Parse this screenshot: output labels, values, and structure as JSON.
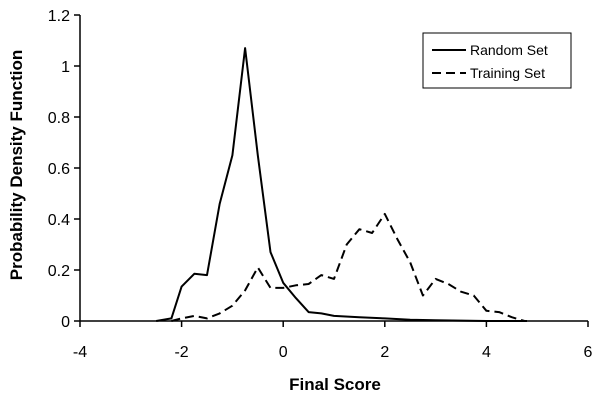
{
  "chart_data": {
    "type": "line",
    "title": "",
    "xlabel": "Final Score",
    "ylabel": "Probability Density Function",
    "xlim": [
      -4,
      6
    ],
    "ylim": [
      0,
      1.2
    ],
    "xticks": [
      "-4",
      "-2",
      "0",
      "2",
      "4",
      "6"
    ],
    "yticks": [
      "0",
      "0.2",
      "0.4",
      "0.6",
      "0.8",
      "1",
      "1.2"
    ],
    "grid": false,
    "legend_position": "top-right",
    "series": [
      {
        "name": "Random Set",
        "style": "solid",
        "color": "#000000",
        "points": [
          [
            -2.5,
            0.0
          ],
          [
            -2.2,
            0.01
          ],
          [
            -2.0,
            0.135
          ],
          [
            -1.75,
            0.185
          ],
          [
            -1.5,
            0.18
          ],
          [
            -1.25,
            0.46
          ],
          [
            -1.0,
            0.65
          ],
          [
            -0.75,
            1.07
          ],
          [
            -0.5,
            0.65
          ],
          [
            -0.25,
            0.27
          ],
          [
            0.0,
            0.15
          ],
          [
            0.25,
            0.09
          ],
          [
            0.5,
            0.035
          ],
          [
            0.75,
            0.03
          ],
          [
            1.0,
            0.02
          ],
          [
            1.5,
            0.015
          ],
          [
            2.0,
            0.01
          ],
          [
            2.5,
            0.005
          ],
          [
            3.0,
            0.003
          ],
          [
            4.0,
            0.0
          ],
          [
            4.8,
            0.0
          ]
        ]
      },
      {
        "name": "Training Set",
        "style": "dashed",
        "color": "#000000",
        "points": [
          [
            -2.2,
            0.0
          ],
          [
            -2.0,
            0.01
          ],
          [
            -1.75,
            0.02
          ],
          [
            -1.5,
            0.01
          ],
          [
            -1.25,
            0.03
          ],
          [
            -1.0,
            0.06
          ],
          [
            -0.75,
            0.12
          ],
          [
            -0.5,
            0.21
          ],
          [
            -0.25,
            0.13
          ],
          [
            0.0,
            0.13
          ],
          [
            0.25,
            0.14
          ],
          [
            0.5,
            0.145
          ],
          [
            0.75,
            0.18
          ],
          [
            1.0,
            0.165
          ],
          [
            1.25,
            0.3
          ],
          [
            1.5,
            0.36
          ],
          [
            1.75,
            0.345
          ],
          [
            2.0,
            0.42
          ],
          [
            2.25,
            0.32
          ],
          [
            2.5,
            0.23
          ],
          [
            2.75,
            0.1
          ],
          [
            3.0,
            0.165
          ],
          [
            3.25,
            0.145
          ],
          [
            3.5,
            0.115
          ],
          [
            3.75,
            0.1
          ],
          [
            4.0,
            0.04
          ],
          [
            4.25,
            0.035
          ],
          [
            4.5,
            0.015
          ],
          [
            4.75,
            0.0
          ]
        ]
      }
    ]
  }
}
